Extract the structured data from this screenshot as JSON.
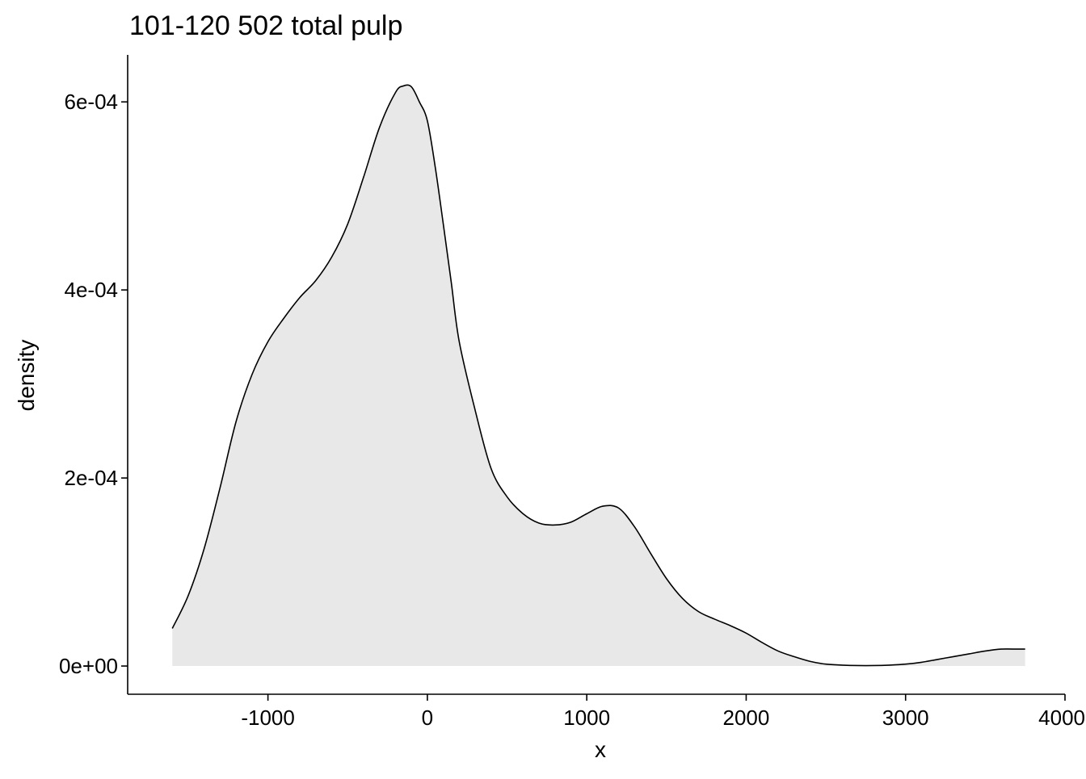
{
  "chart_data": {
    "type": "area",
    "title": "101-120 502 total pulp",
    "xlabel": "x",
    "ylabel": "density",
    "xlim": [
      -1880,
      4000
    ],
    "ylim": [
      -3e-05,
      0.00065
    ],
    "x_ticks": [
      {
        "value": -1000,
        "label": "-1000"
      },
      {
        "value": 0,
        "label": "0"
      },
      {
        "value": 1000,
        "label": "1000"
      },
      {
        "value": 2000,
        "label": "2000"
      },
      {
        "value": 3000,
        "label": "3000"
      },
      {
        "value": 4000,
        "label": "4000"
      }
    ],
    "y_ticks": [
      {
        "value": 0,
        "label": "0e+00"
      },
      {
        "value": 0.0002,
        "label": "2e-04"
      },
      {
        "value": 0.0004,
        "label": "4e-04"
      },
      {
        "value": 0.0006,
        "label": "6e-04"
      }
    ],
    "grid": false,
    "fill_color": "#e8e8e8",
    "line_color": "#000000",
    "series": [
      {
        "x": [
          -1600,
          -1500,
          -1400,
          -1300,
          -1200,
          -1100,
          -1000,
          -900,
          -800,
          -700,
          -600,
          -500,
          -400,
          -300,
          -200,
          -150,
          -100,
          -50,
          0,
          50,
          100,
          150,
          200,
          300,
          400,
          500,
          600,
          700,
          800,
          900,
          1000,
          1100,
          1200,
          1300,
          1400,
          1500,
          1600,
          1700,
          1800,
          1900,
          2000,
          2100,
          2200,
          2300,
          2400,
          2500,
          2600,
          2700,
          2800,
          2900,
          3000,
          3100,
          3200,
          3300,
          3400,
          3500,
          3600,
          3700,
          3750
        ],
        "values": [
          4e-05,
          7.5e-05,
          0.000125,
          0.00019,
          0.00026,
          0.00031,
          0.000345,
          0.00037,
          0.000392,
          0.00041,
          0.000435,
          0.00047,
          0.00052,
          0.000573,
          0.00061,
          0.000617,
          0.000616,
          0.0006,
          0.00058,
          0.00053,
          0.00047,
          0.000408,
          0.000345,
          0.000272,
          0.00021,
          0.00018,
          0.000162,
          0.000152,
          0.00015,
          0.000153,
          0.000162,
          0.00017,
          0.000168,
          0.000148,
          0.00012,
          9.3e-05,
          7.2e-05,
          5.8e-05,
          5e-05,
          4.3e-05,
          3.5e-05,
          2.5e-05,
          1.6e-05,
          1e-05,
          5e-06,
          2e-06,
          1e-06,
          5e-07,
          5e-07,
          1e-06,
          2e-06,
          4e-06,
          7e-06,
          1e-05,
          1.3e-05,
          1.6e-05,
          1.8e-05,
          1.8e-05,
          1.8e-05
        ]
      }
    ]
  }
}
